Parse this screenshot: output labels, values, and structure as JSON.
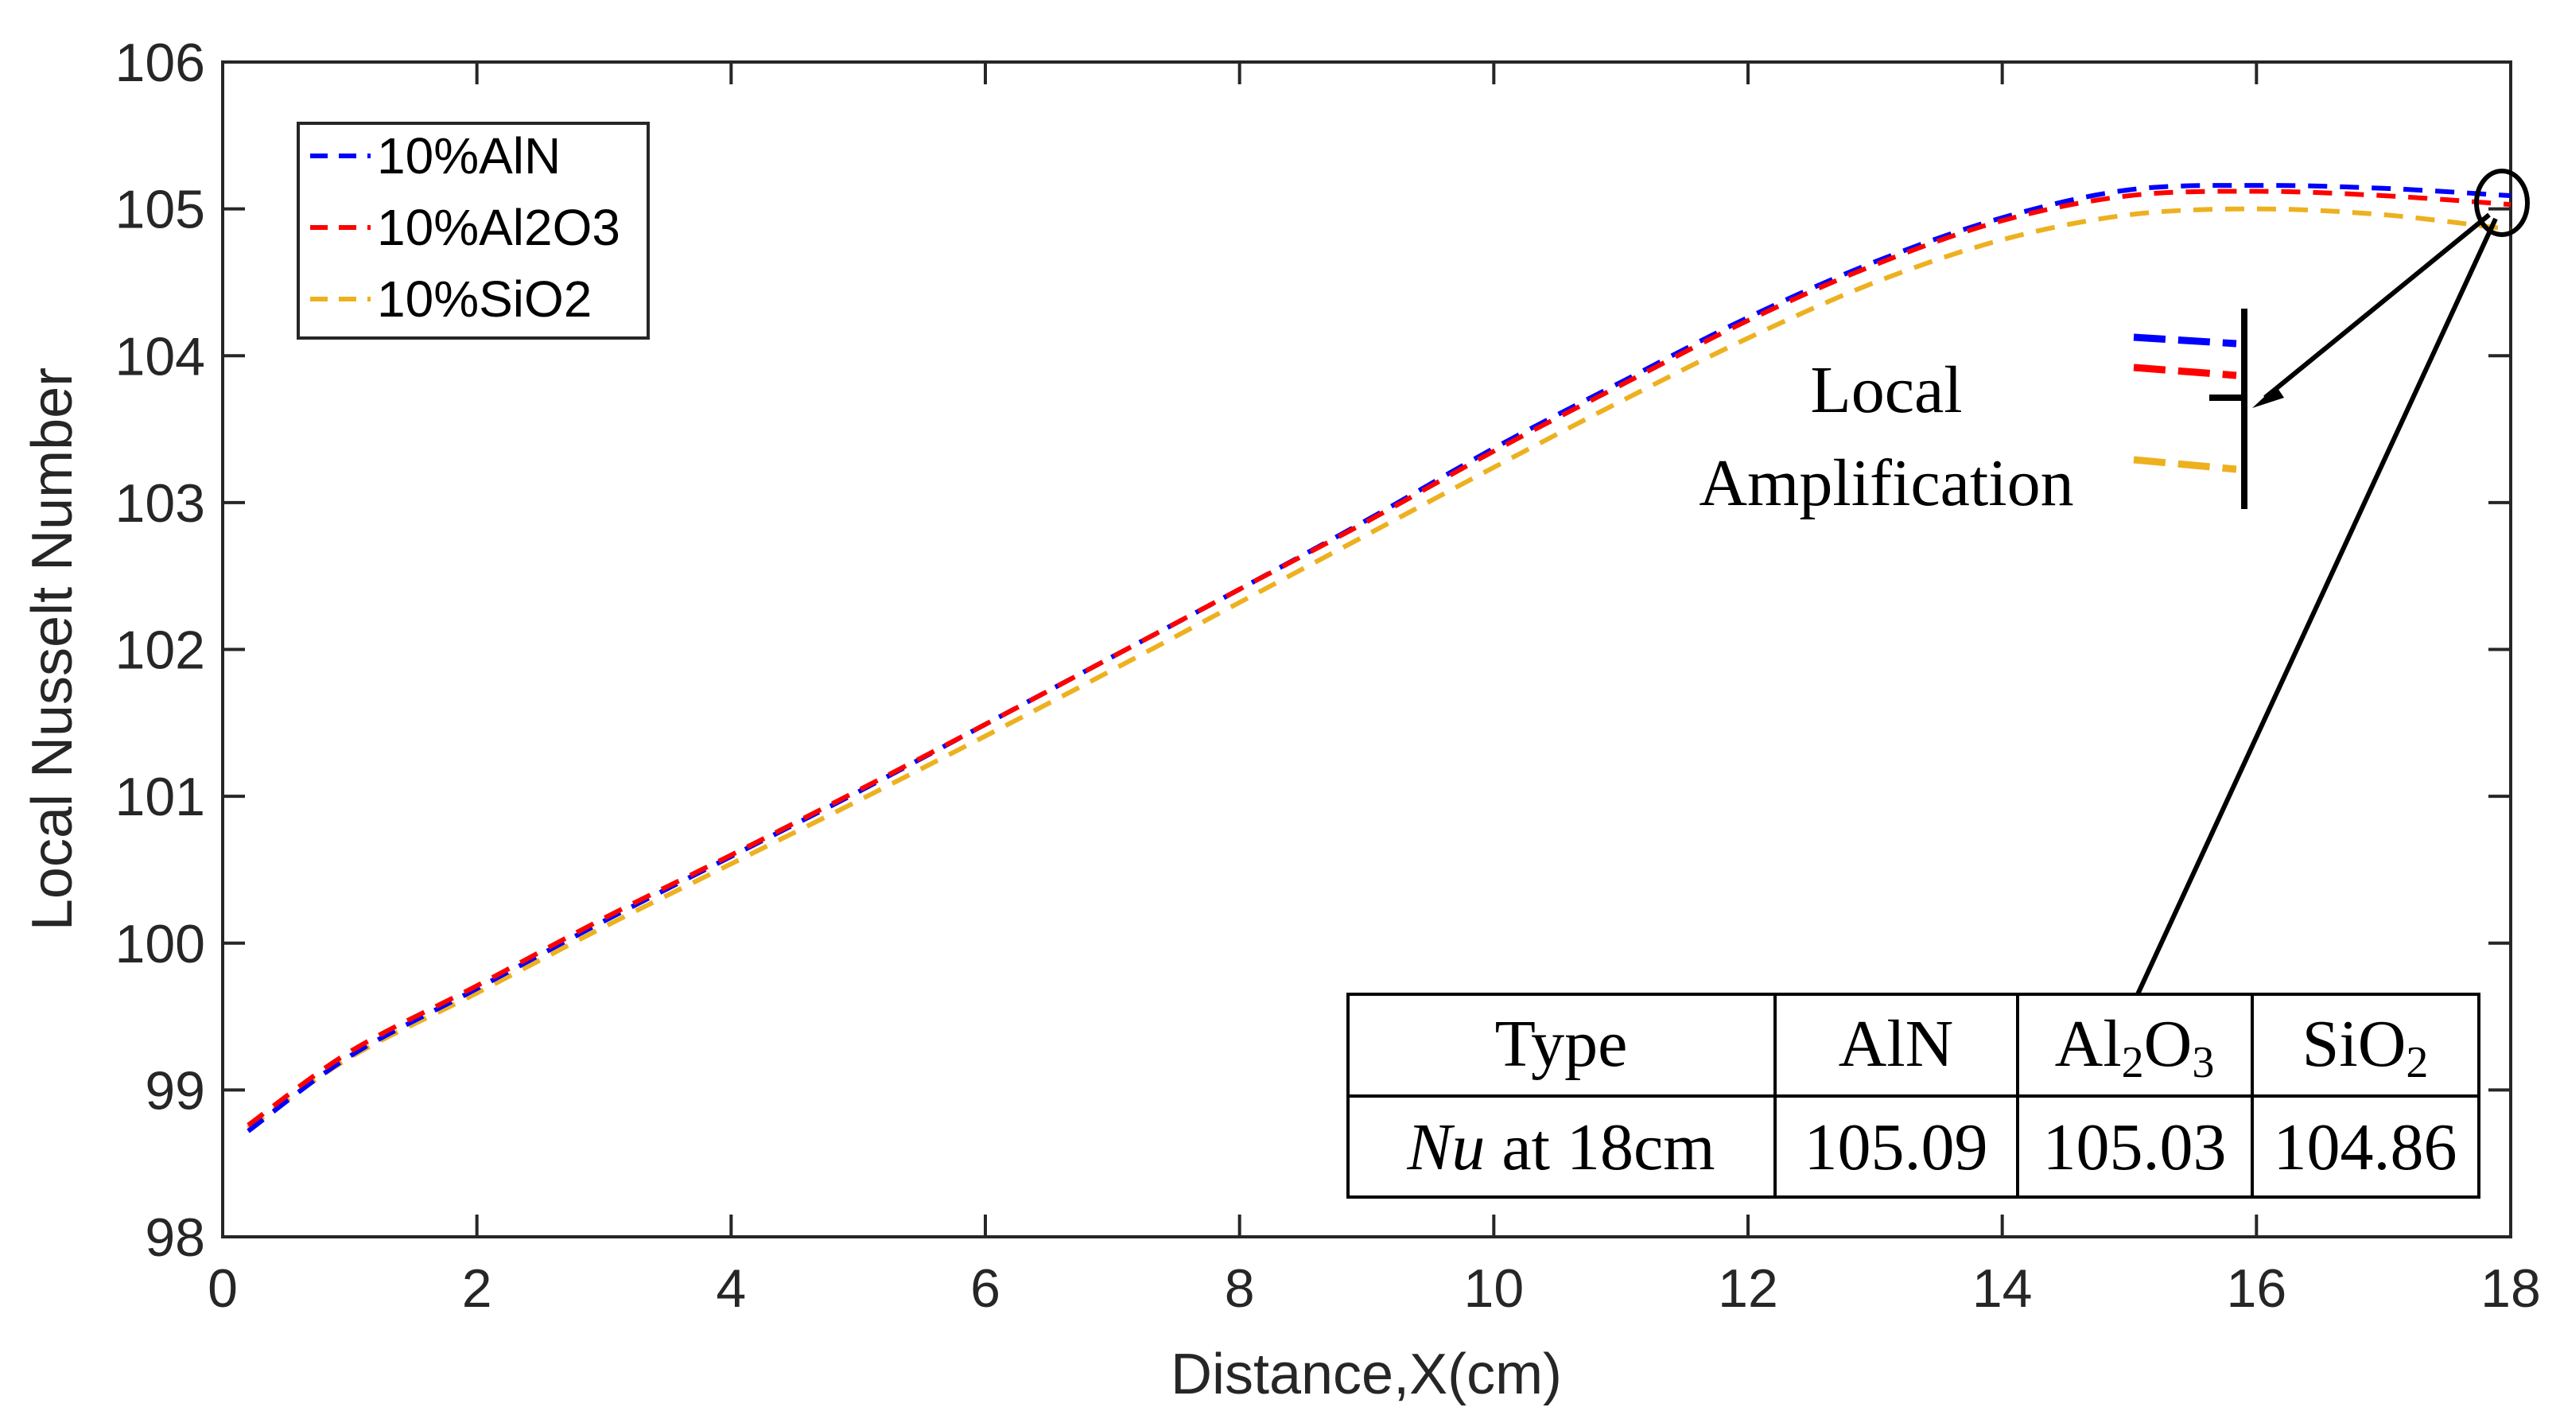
{
  "chart_data": {
    "type": "line",
    "xlabel": "Distance,X(cm)",
    "ylabel": "Local Nusselt Number",
    "xlim": [
      0,
      18
    ],
    "ylim": [
      98,
      106
    ],
    "x_ticks": [
      0,
      2,
      4,
      6,
      8,
      10,
      12,
      14,
      16,
      18
    ],
    "y_ticks": [
      98,
      99,
      100,
      101,
      102,
      103,
      104,
      105,
      106
    ],
    "grid": false,
    "legend_position": "top-left",
    "line_style": "dashed",
    "x": [
      0.2,
      1,
      2,
      3,
      4,
      5,
      6,
      7,
      8,
      9,
      10,
      11,
      12,
      13,
      14,
      15,
      16,
      17,
      18
    ],
    "series": [
      {
        "name": "10%AlN",
        "color": "#0000ff",
        "values": [
          98.72,
          99.23,
          99.69,
          100.15,
          100.59,
          101.03,
          101.49,
          101.95,
          102.41,
          102.88,
          103.37,
          103.82,
          104.26,
          104.64,
          104.94,
          105.13,
          105.16,
          105.14,
          105.09
        ]
      },
      {
        "name": "10%Al2O3",
        "color": "#ff0000",
        "values": [
          98.76,
          99.26,
          99.71,
          100.17,
          100.6,
          101.04,
          101.49,
          101.95,
          102.41,
          102.87,
          103.35,
          103.8,
          104.24,
          104.62,
          104.92,
          105.09,
          105.12,
          105.09,
          105.03
        ]
      },
      {
        "name": "10%SiO2",
        "color": "#edb120",
        "values": [
          98.74,
          99.22,
          99.66,
          100.11,
          100.54,
          100.97,
          101.41,
          101.86,
          102.32,
          102.78,
          103.24,
          103.69,
          104.12,
          104.5,
          104.79,
          104.96,
          105.0,
          104.96,
          104.86
        ]
      }
    ],
    "annotations": {
      "amplification_label_1": "Local",
      "amplification_label_2": "Amplification",
      "table": {
        "header": [
          "Type",
          "AlN",
          "Al",
          "2",
          "O",
          "3",
          "SiO",
          "2"
        ],
        "row_label_italic": "Nu",
        "row_label_rest": " at 18cm",
        "values": [
          "105.09",
          "105.03",
          "104.86"
        ]
      }
    }
  }
}
